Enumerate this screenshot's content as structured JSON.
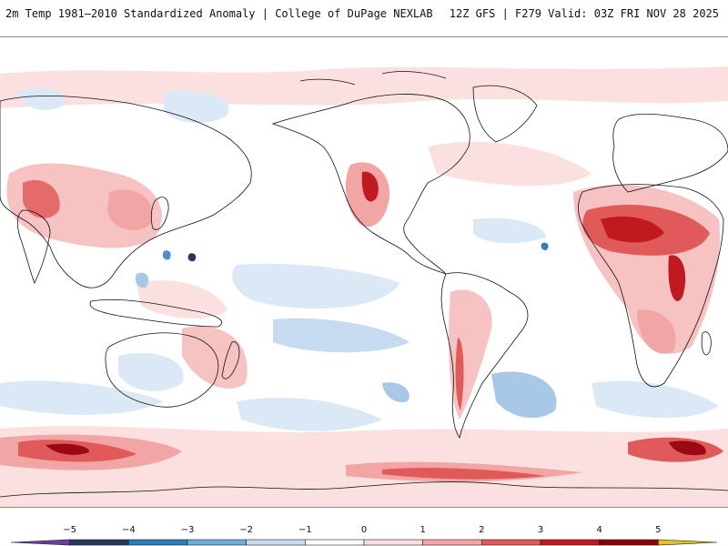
{
  "header": {
    "title": "2m Temp 1981–2010 Standardized Anomaly | College of DuPage NEXLAB",
    "run_info": "12Z GFS | F279 Valid: 03Z FRI NOV 28 2025"
  },
  "legend": {
    "ticks": [
      "−5",
      "−4",
      "−3",
      "−2",
      "−1",
      "0",
      "1",
      "2",
      "3",
      "4",
      "5"
    ],
    "bins": [
      {
        "color": "#6a3d9a"
      },
      {
        "color": "#23395d"
      },
      {
        "color": "#2c7fb8"
      },
      {
        "color": "#6baed6"
      },
      {
        "color": "#c6dbef"
      },
      {
        "color": "#ffffff"
      },
      {
        "color": "#fcdede"
      },
      {
        "color": "#f4a6a6"
      },
      {
        "color": "#e05a5a"
      },
      {
        "color": "#c0191f"
      },
      {
        "color": "#8b0000"
      },
      {
        "color": "#e8c21a"
      }
    ]
  },
  "colors": {
    "warm_light": "#fbe0e0",
    "warm_mid": "#f2a5a5",
    "warm_strong": "#d23a3a",
    "warm_extreme": "#9b0a12",
    "cool_light": "#dbe8f5",
    "cool_mid": "#a9c8e8",
    "cool_strong": "#4a8fd0",
    "coast": "#111111"
  }
}
